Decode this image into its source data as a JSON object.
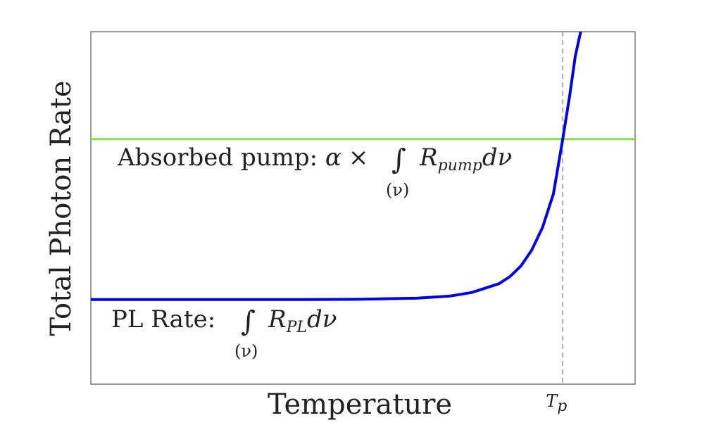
{
  "chart_data": {
    "type": "line",
    "title": "",
    "xlabel": "Temperature",
    "ylabel": "Total Photon Rate",
    "xlim": [
      0,
      1
    ],
    "ylim": [
      0,
      1
    ],
    "grid": false,
    "x_ticks": [
      {
        "value": 0.867,
        "label": "T",
        "sub": "p"
      }
    ],
    "reference_lines": [
      {
        "kind": "horizontal",
        "y": 0.695,
        "color": "#8fdc4a"
      },
      {
        "kind": "vertical",
        "x": 0.867,
        "color": "#a9a9a9",
        "style": "dashed"
      }
    ],
    "series": [
      {
        "color": "#0000e6",
        "x": [
          0.0,
          0.1,
          0.2,
          0.3,
          0.4,
          0.5,
          0.6,
          0.66,
          0.7,
          0.72,
          0.75,
          0.77,
          0.79,
          0.81,
          0.83,
          0.85,
          0.867,
          0.88,
          0.89,
          0.9
        ],
        "y": [
          0.24,
          0.24,
          0.24,
          0.24,
          0.24,
          0.241,
          0.244,
          0.25,
          0.26,
          0.27,
          0.285,
          0.305,
          0.335,
          0.38,
          0.445,
          0.54,
          0.695,
          0.82,
          0.93,
          1.0
        ]
      }
    ],
    "annotations": {
      "pump": {
        "prefix": "Absorbed pump: ",
        "alpha": "α",
        "times": "×",
        "integral": "∫",
        "lower": "(ν)",
        "R": "R",
        "sub": "pump",
        "tail": "dν"
      },
      "pl": {
        "prefix": "PL Rate: ",
        "integral": "∫",
        "lower": "(ν)",
        "R": "R",
        "sub": "PL",
        "tail": "dν"
      }
    }
  }
}
